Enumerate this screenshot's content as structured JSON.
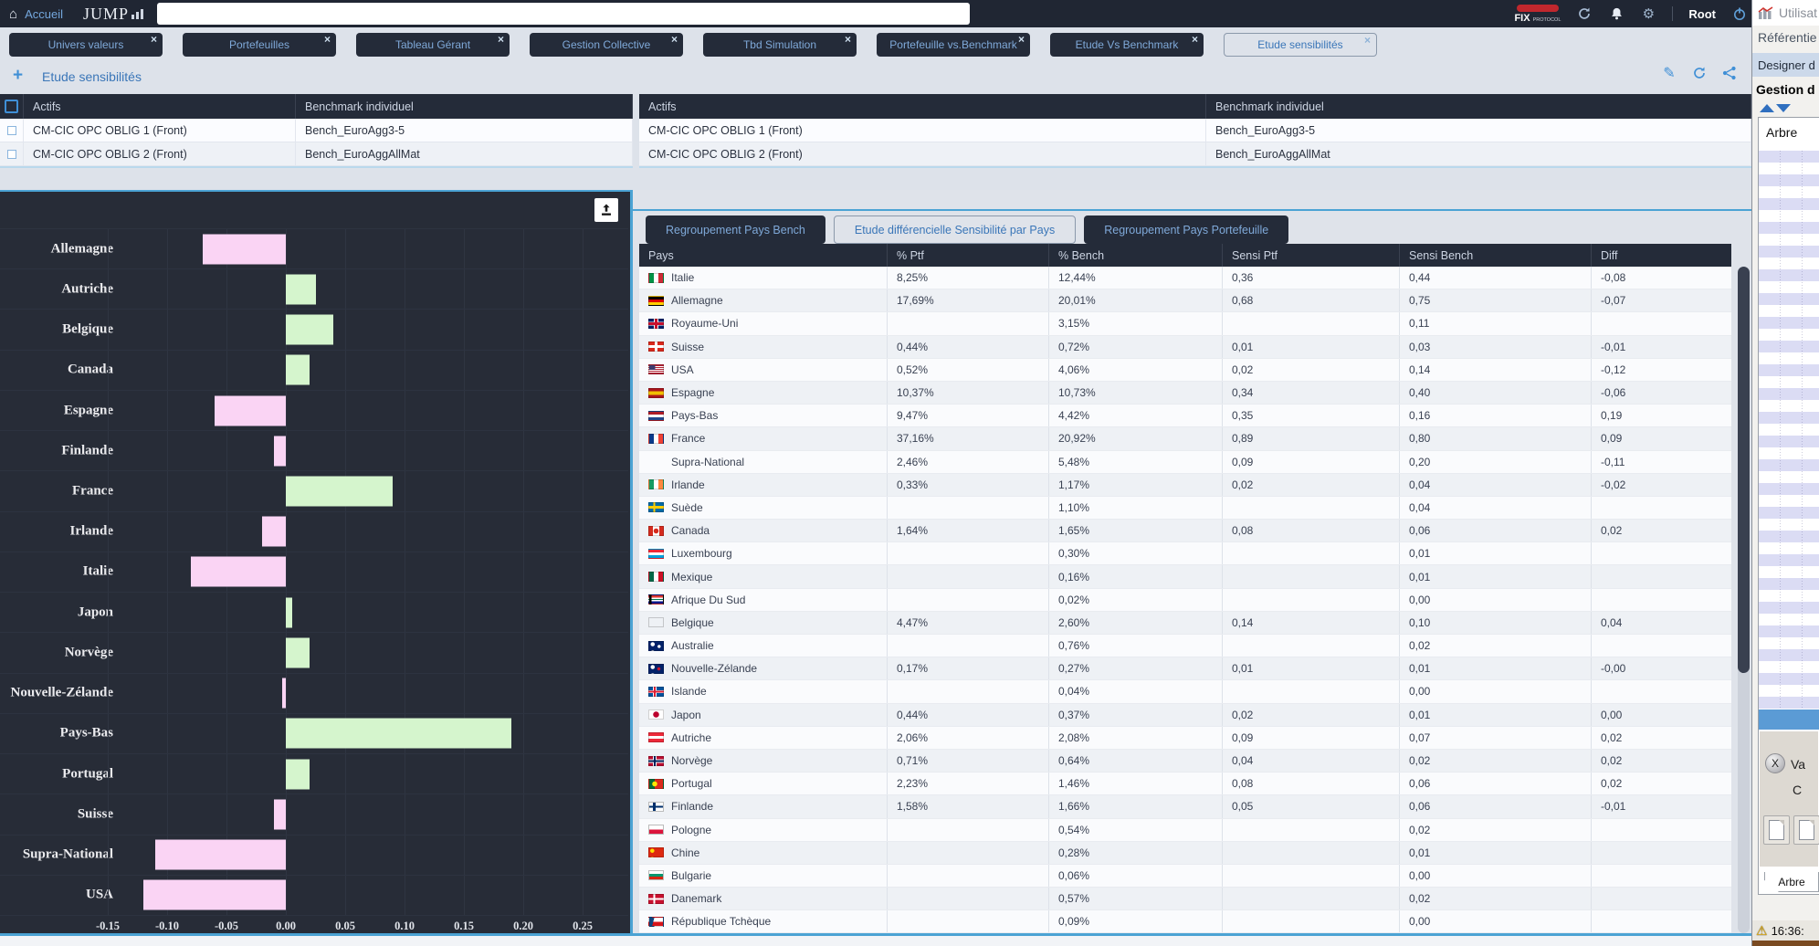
{
  "topbar": {
    "home_label": "Accueil",
    "logo": "JUMP",
    "search_value": "",
    "fix_label": "FIX",
    "fix_sub": "PROTOCOL",
    "user": "Root"
  },
  "tabs": [
    {
      "label": "Univers valeurs",
      "active": false
    },
    {
      "label": "Portefeuilles",
      "active": false
    },
    {
      "label": "Tableau Gérant",
      "active": false
    },
    {
      "label": "Gestion Collective",
      "active": false
    },
    {
      "label": "Tbd Simulation",
      "active": false
    },
    {
      "label": "Portefeuille vs.Benchmark",
      "active": false
    },
    {
      "label": "Etude Vs Benchmark",
      "active": false
    },
    {
      "label": "Etude sensibilités",
      "active": true
    }
  ],
  "title": "Etude sensibilités",
  "assets_left": {
    "headers": [
      "Actifs",
      "Benchmark individuel"
    ],
    "rows": [
      {
        "actif": "CM-CIC OPC OBLIG 1 (Front)",
        "bench": "Bench_EuroAgg3-5"
      },
      {
        "actif": "CM-CIC OPC OBLIG 2 (Front)",
        "bench": "Bench_EuroAggAllMat"
      }
    ]
  },
  "assets_right": {
    "headers": [
      "Actifs",
      "Benchmark individuel"
    ],
    "rows": [
      {
        "actif": "CM-CIC OPC OBLIG 1 (Front)",
        "bench": "Bench_EuroAgg3-5"
      },
      {
        "actif": "CM-CIC OPC OBLIG 2 (Front)",
        "bench": "Bench_EuroAggAllMat"
      }
    ]
  },
  "panel_tabs": [
    {
      "label": "Regroupement Pays Bench",
      "active": false
    },
    {
      "label": "Etude différencielle Sensibilité par Pays",
      "active": true
    },
    {
      "label": "Regroupement Pays Portefeuille",
      "active": false
    }
  ],
  "country_table": {
    "headers": [
      "Pays",
      "% Ptf",
      "% Bench",
      "Sensi Ptf",
      "Sensi Bench",
      "Diff"
    ],
    "rows": [
      {
        "flag": "it",
        "pays": "Italie",
        "pct_ptf": "8,25%",
        "pct_bench": "12,44%",
        "sensi_ptf": "0,36",
        "sensi_bench": "0,44",
        "diff": "-0,08"
      },
      {
        "flag": "de",
        "pays": "Allemagne",
        "pct_ptf": "17,69%",
        "pct_bench": "20,01%",
        "sensi_ptf": "0,68",
        "sensi_bench": "0,75",
        "diff": "-0,07"
      },
      {
        "flag": "gb",
        "pays": "Royaume-Uni",
        "pct_ptf": "",
        "pct_bench": "3,15%",
        "sensi_ptf": "",
        "sensi_bench": "0,11",
        "diff": ""
      },
      {
        "flag": "ch",
        "pays": "Suisse",
        "pct_ptf": "0,44%",
        "pct_bench": "0,72%",
        "sensi_ptf": "0,01",
        "sensi_bench": "0,03",
        "diff": "-0,01"
      },
      {
        "flag": "us",
        "pays": "USA",
        "pct_ptf": "0,52%",
        "pct_bench": "4,06%",
        "sensi_ptf": "0,02",
        "sensi_bench": "0,14",
        "diff": "-0,12"
      },
      {
        "flag": "es",
        "pays": "Espagne",
        "pct_ptf": "10,37%",
        "pct_bench": "10,73%",
        "sensi_ptf": "0,34",
        "sensi_bench": "0,40",
        "diff": "-0,06"
      },
      {
        "flag": "nl",
        "pays": "Pays-Bas",
        "pct_ptf": "9,47%",
        "pct_bench": "4,42%",
        "sensi_ptf": "0,35",
        "sensi_bench": "0,16",
        "diff": "0,19"
      },
      {
        "flag": "fr",
        "pays": "France",
        "pct_ptf": "37,16%",
        "pct_bench": "20,92%",
        "sensi_ptf": "0,89",
        "sensi_bench": "0,80",
        "diff": "0,09"
      },
      {
        "flag": "",
        "pays": "Supra-National",
        "pct_ptf": "2,46%",
        "pct_bench": "5,48%",
        "sensi_ptf": "0,09",
        "sensi_bench": "0,20",
        "diff": "-0,11"
      },
      {
        "flag": "ie",
        "pays": "Irlande",
        "pct_ptf": "0,33%",
        "pct_bench": "1,17%",
        "sensi_ptf": "0,02",
        "sensi_bench": "0,04",
        "diff": "-0,02"
      },
      {
        "flag": "se",
        "pays": "Suède",
        "pct_ptf": "",
        "pct_bench": "1,10%",
        "sensi_ptf": "",
        "sensi_bench": "0,04",
        "diff": ""
      },
      {
        "flag": "ca",
        "pays": "Canada",
        "pct_ptf": "1,64%",
        "pct_bench": "1,65%",
        "sensi_ptf": "0,08",
        "sensi_bench": "0,06",
        "diff": "0,02"
      },
      {
        "flag": "lu",
        "pays": "Luxembourg",
        "pct_ptf": "",
        "pct_bench": "0,30%",
        "sensi_ptf": "",
        "sensi_bench": "0,01",
        "diff": ""
      },
      {
        "flag": "mx",
        "pays": "Mexique",
        "pct_ptf": "",
        "pct_bench": "0,16%",
        "sensi_ptf": "",
        "sensi_bench": "0,01",
        "diff": ""
      },
      {
        "flag": "za",
        "pays": "Afrique Du Sud",
        "pct_ptf": "",
        "pct_bench": "0,02%",
        "sensi_ptf": "",
        "sensi_bench": "0,00",
        "diff": ""
      },
      {
        "flag": "be",
        "pays": "Belgique",
        "pct_ptf": "4,47%",
        "pct_bench": "2,60%",
        "sensi_ptf": "0,14",
        "sensi_bench": "0,10",
        "diff": "0,04"
      },
      {
        "flag": "au",
        "pays": "Australie",
        "pct_ptf": "",
        "pct_bench": "0,76%",
        "sensi_ptf": "",
        "sensi_bench": "0,02",
        "diff": ""
      },
      {
        "flag": "nz",
        "pays": "Nouvelle-Zélande",
        "pct_ptf": "0,17%",
        "pct_bench": "0,27%",
        "sensi_ptf": "0,01",
        "sensi_bench": "0,01",
        "diff": "-0,00"
      },
      {
        "flag": "is",
        "pays": "Islande",
        "pct_ptf": "",
        "pct_bench": "0,04%",
        "sensi_ptf": "",
        "sensi_bench": "0,00",
        "diff": ""
      },
      {
        "flag": "jp",
        "pays": "Japon",
        "pct_ptf": "0,44%",
        "pct_bench": "0,37%",
        "sensi_ptf": "0,02",
        "sensi_bench": "0,01",
        "diff": "0,00"
      },
      {
        "flag": "at",
        "pays": "Autriche",
        "pct_ptf": "2,06%",
        "pct_bench": "2,08%",
        "sensi_ptf": "0,09",
        "sensi_bench": "0,07",
        "diff": "0,02"
      },
      {
        "flag": "no",
        "pays": "Norvège",
        "pct_ptf": "0,71%",
        "pct_bench": "0,64%",
        "sensi_ptf": "0,04",
        "sensi_bench": "0,02",
        "diff": "0,02"
      },
      {
        "flag": "pt",
        "pays": "Portugal",
        "pct_ptf": "2,23%",
        "pct_bench": "1,46%",
        "sensi_ptf": "0,08",
        "sensi_bench": "0,06",
        "diff": "0,02"
      },
      {
        "flag": "fi",
        "pays": "Finlande",
        "pct_ptf": "1,58%",
        "pct_bench": "1,66%",
        "sensi_ptf": "0,05",
        "sensi_bench": "0,06",
        "diff": "-0,01"
      },
      {
        "flag": "pl",
        "pays": "Pologne",
        "pct_ptf": "",
        "pct_bench": "0,54%",
        "sensi_ptf": "",
        "sensi_bench": "0,02",
        "diff": ""
      },
      {
        "flag": "cn",
        "pays": "Chine",
        "pct_ptf": "",
        "pct_bench": "0,28%",
        "sensi_ptf": "",
        "sensi_bench": "0,01",
        "diff": ""
      },
      {
        "flag": "bg",
        "pays": "Bulgarie",
        "pct_ptf": "",
        "pct_bench": "0,06%",
        "sensi_ptf": "",
        "sensi_bench": "0,00",
        "diff": ""
      },
      {
        "flag": "dk",
        "pays": "Danemark",
        "pct_ptf": "",
        "pct_bench": "0,57%",
        "sensi_ptf": "",
        "sensi_bench": "0,02",
        "diff": ""
      },
      {
        "flag": "cz",
        "pays": "République Tchèque",
        "pct_ptf": "",
        "pct_bench": "0,09%",
        "sensi_ptf": "",
        "sensi_bench": "0,00",
        "diff": ""
      }
    ]
  },
  "chart_data": {
    "type": "bar",
    "orientation": "horizontal",
    "title": "",
    "xlabel": "",
    "ylabel": "",
    "categories": [
      "Allemagne",
      "Autriche",
      "Belgique",
      "Canada",
      "Espagne",
      "Finlande",
      "France",
      "Irlande",
      "Italie",
      "Japon",
      "Norvège",
      "Nouvelle-Zélande",
      "Pays-Bas",
      "Portugal",
      "Suisse",
      "Supra-National",
      "USA"
    ],
    "values": [
      -0.07,
      0.025,
      0.04,
      0.02,
      -0.06,
      -0.01,
      0.09,
      -0.02,
      -0.08,
      0.005,
      0.02,
      -0.003,
      0.19,
      0.02,
      -0.01,
      -0.11,
      -0.12
    ],
    "xlim": [
      -0.15,
      0.25
    ],
    "x_ticks": [
      -0.15,
      -0.1,
      -0.05,
      0,
      0.05,
      0.1,
      0.15,
      0.2,
      0.25
    ],
    "x_tick_labels": [
      "-0.15",
      "-0.10",
      "-0.05",
      "0.00",
      "0.05",
      "0.10",
      "0.15",
      "0.20",
      "0.25"
    ],
    "grid": true,
    "legend": false,
    "positive_color": "#d5f5cd",
    "negative_color": "#fad4f4",
    "background": "#272c37"
  },
  "sidebar": {
    "title": "Utilisat",
    "section": "Référentie",
    "designer": "Designer d",
    "gestion": "Gestion d",
    "tree_label": "Arbre",
    "action_x": "X",
    "action_va": "Va",
    "action_c": "C",
    "tab_label": "Arbre",
    "status_time": "16:36:"
  },
  "colors": {
    "accent_blue": "#4ba3d4",
    "header_dark": "#242b39",
    "panel_bg": "#dfe3ea",
    "topbar_bg": "#202633",
    "positive": "#d5f5cd",
    "negative": "#fad4f4"
  }
}
